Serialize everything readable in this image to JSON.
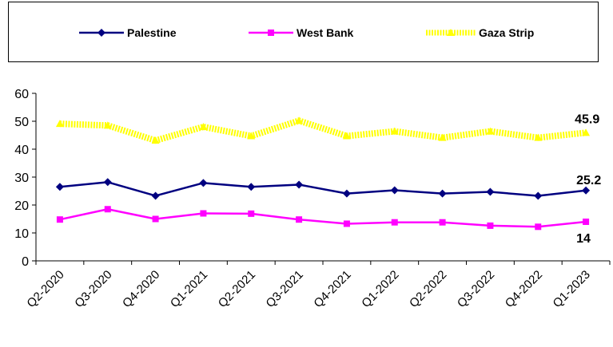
{
  "chart_data": {
    "type": "line",
    "categories": [
      "Q2-2020",
      "Q3-2020",
      "Q4-2020",
      "Q1-2021",
      "Q2-2021",
      "Q3-2021",
      "Q4-2021",
      "Q1-2022",
      "Q2-2022",
      "Q3-2022",
      "Q4-2022",
      "Q1-2023"
    ],
    "series": [
      {
        "name": "Palestine",
        "color": "#000080",
        "marker": "diamond",
        "values": [
          26.5,
          28.2,
          23.3,
          27.9,
          26.5,
          27.3,
          24.1,
          25.3,
          24.1,
          24.7,
          23.3,
          25.2
        ]
      },
      {
        "name": "West Bank",
        "color": "#ff00ff",
        "marker": "square",
        "values": [
          14.8,
          18.5,
          15.0,
          17.0,
          16.9,
          14.8,
          13.3,
          13.8,
          13.8,
          12.6,
          12.2,
          14.0
        ]
      },
      {
        "name": "Gaza Strip",
        "color": "#ffff00",
        "marker": "triangle",
        "values": [
          49.1,
          48.5,
          43.1,
          48.0,
          44.7,
          50.2,
          44.7,
          46.4,
          44.1,
          46.4,
          44.1,
          45.9
        ]
      }
    ],
    "end_labels": [
      "25.2",
      "14",
      "45.9"
    ],
    "yticks": [
      "0",
      "10",
      "20",
      "30",
      "40",
      "50",
      "60"
    ],
    "ylim": [
      0,
      60
    ],
    "title": "",
    "xlabel": "",
    "ylabel": "",
    "legend_position": "top",
    "grid": false
  }
}
